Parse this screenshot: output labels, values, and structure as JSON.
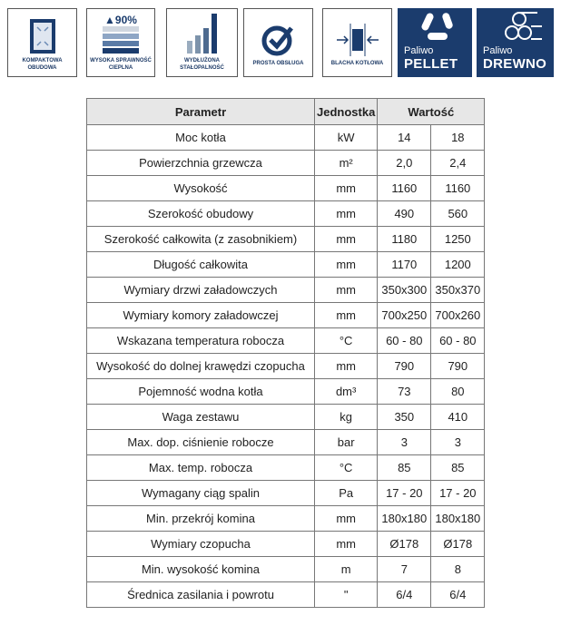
{
  "features": [
    {
      "icon": "compact-housing-icon",
      "caption": [
        "KOMPAKTOWA",
        "OBUDOWA"
      ]
    },
    {
      "icon": "efficiency-icon",
      "badge": "▲90%",
      "caption": [
        "WYSOKA SPRAWNOŚĆ",
        "CIEPLNA"
      ]
    },
    {
      "icon": "bar-chart-icon",
      "caption": [
        "WYDŁUŻONA",
        "STAŁOPALNOŚĆ"
      ]
    },
    {
      "icon": "checkmark-icon",
      "caption": [
        "PROSTA OBSŁUGA"
      ]
    },
    {
      "icon": "boiler-plate-icon",
      "caption": [
        "BLACHA KOTŁOWA"
      ]
    },
    {
      "icon": "pellet-icon",
      "line1": "Paliwo",
      "line2": "PELLET"
    },
    {
      "icon": "wood-logs-icon",
      "line1": "Paliwo",
      "line2": "DREWNO"
    }
  ],
  "colors": {
    "brand": "#1b3c6d",
    "header_bg": "#e7e7e7"
  },
  "table": {
    "headers": [
      "Parametr",
      "Jednostka",
      "Wartość"
    ],
    "rows": [
      [
        "Moc kotła",
        "kW",
        "14",
        "18"
      ],
      [
        "Powierzchnia grzewcza",
        "m²",
        "2,0",
        "2,4"
      ],
      [
        "Wysokość",
        "mm",
        "1160",
        "1160"
      ],
      [
        "Szerokość obudowy",
        "mm",
        "490",
        "560"
      ],
      [
        "Szerokość całkowita (z zasobnikiem)",
        "mm",
        "1180",
        "1250"
      ],
      [
        "Długość całkowita",
        "mm",
        "1170",
        "1200"
      ],
      [
        "Wymiary drzwi załadowczych",
        "mm",
        "350x300",
        "350x370"
      ],
      [
        "Wymiary komory załadowczej",
        "mm",
        "700x250",
        "700x260"
      ],
      [
        "Wskazana temperatura robocza",
        "°C",
        "60 - 80",
        "60 - 80"
      ],
      [
        "Wysokość do dolnej krawędzi czopucha",
        "mm",
        "790",
        "790"
      ],
      [
        "Pojemność wodna kotła",
        "dm³",
        "73",
        "80"
      ],
      [
        "Waga zestawu",
        "kg",
        "350",
        "410"
      ],
      [
        "Max. dop. ciśnienie robocze",
        "bar",
        "3",
        "3"
      ],
      [
        "Max. temp. robocza",
        "°C",
        "85",
        "85"
      ],
      [
        "Wymagany ciąg spalin",
        "Pa",
        "17 - 20",
        "17 - 20"
      ],
      [
        "Min. przekrój komina",
        "mm",
        "180x180",
        "180x180"
      ],
      [
        "Wymiary czopucha",
        "mm",
        "Ø178",
        "Ø178"
      ],
      [
        "Min. wysokość komina",
        "m",
        "7",
        "8"
      ],
      [
        "Średnica zasilania i powrotu",
        "\"",
        "6/4",
        "6/4"
      ]
    ]
  }
}
